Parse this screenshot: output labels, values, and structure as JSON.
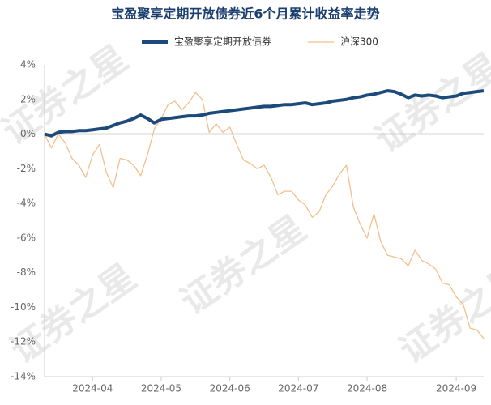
{
  "chart_data": {
    "type": "line",
    "title": "宝盈聚享定期开放债券近6个月累计收益率走势",
    "watermark": "证券之星",
    "categories": [
      null,
      null,
      null,
      null,
      null,
      null,
      null,
      "2024-04",
      null,
      null,
      null,
      null,
      null,
      null,
      null,
      null,
      null,
      "2024-05",
      null,
      null,
      null,
      null,
      null,
      null,
      null,
      null,
      null,
      "2024-06",
      null,
      null,
      null,
      null,
      null,
      null,
      null,
      null,
      null,
      "2024-07",
      null,
      null,
      null,
      null,
      null,
      null,
      null,
      null,
      null,
      "2024-08",
      null,
      null,
      null,
      null,
      null,
      null,
      null,
      null,
      null,
      null,
      null,
      null,
      "2024-09",
      null,
      null,
      null,
      null
    ],
    "series": [
      {
        "name": "宝盈聚享定期开放债券",
        "color": "#1c4a7a",
        "width": 4,
        "values": [
          0,
          -0.1,
          0.1,
          0.15,
          0.15,
          0.2,
          0.2,
          0.25,
          0.3,
          0.35,
          0.5,
          0.65,
          0.75,
          0.9,
          1.1,
          0.9,
          0.65,
          0.85,
          0.9,
          0.95,
          1.0,
          1.05,
          1.05,
          1.1,
          1.2,
          1.25,
          1.3,
          1.35,
          1.4,
          1.45,
          1.5,
          1.55,
          1.6,
          1.6,
          1.65,
          1.7,
          1.7,
          1.75,
          1.8,
          1.7,
          1.75,
          1.8,
          1.9,
          1.95,
          2.0,
          2.1,
          2.15,
          2.25,
          2.3,
          2.4,
          2.5,
          2.45,
          2.3,
          2.1,
          2.25,
          2.2,
          2.25,
          2.2,
          2.1,
          2.15,
          2.2,
          2.35,
          2.4,
          2.45,
          2.5
        ]
      },
      {
        "name": "沪深300",
        "color": "#f1c08b",
        "width": 1.3,
        "values": [
          0,
          -0.8,
          0,
          -0.5,
          -1.4,
          -1.8,
          -2.5,
          -1.2,
          -0.6,
          -2.2,
          -3.1,
          -1.4,
          -1.5,
          -1.8,
          -2.4,
          -1.2,
          0.3,
          0.9,
          1.7,
          1.9,
          1.4,
          1.8,
          2.4,
          2.0,
          0.1,
          0.6,
          0.1,
          0.4,
          -0.6,
          -1.5,
          -1.7,
          -2.0,
          -1.8,
          -2.5,
          -3.5,
          -3.3,
          -3.3,
          -3.8,
          -4.1,
          -4.8,
          -4.5,
          -3.5,
          -3.0,
          -2.3,
          -1.8,
          -4.2,
          -5.2,
          -6.0,
          -4.6,
          -6.2,
          -7.0,
          -7.1,
          -7.2,
          -7.6,
          -6.7,
          -7.3,
          -7.5,
          -7.8,
          -8.6,
          -8.7,
          -9.4,
          -9.8,
          -11.2,
          -11.3,
          -11.8
        ]
      }
    ],
    "ylim": [
      -14,
      4
    ],
    "yticks": [
      {
        "value": 4,
        "label": "4%"
      },
      {
        "value": 2,
        "label": "2%"
      },
      {
        "value": 0,
        "label": "0%"
      },
      {
        "value": -2,
        "label": "-2%"
      },
      {
        "value": -4,
        "label": "-4%"
      },
      {
        "value": -6,
        "label": "-6%"
      },
      {
        "value": -8,
        "label": "-8%"
      },
      {
        "value": -10,
        "label": "-10%"
      },
      {
        "value": -12,
        "label": "-12%"
      },
      {
        "value": -14,
        "label": "-14%"
      }
    ],
    "grid": false
  }
}
